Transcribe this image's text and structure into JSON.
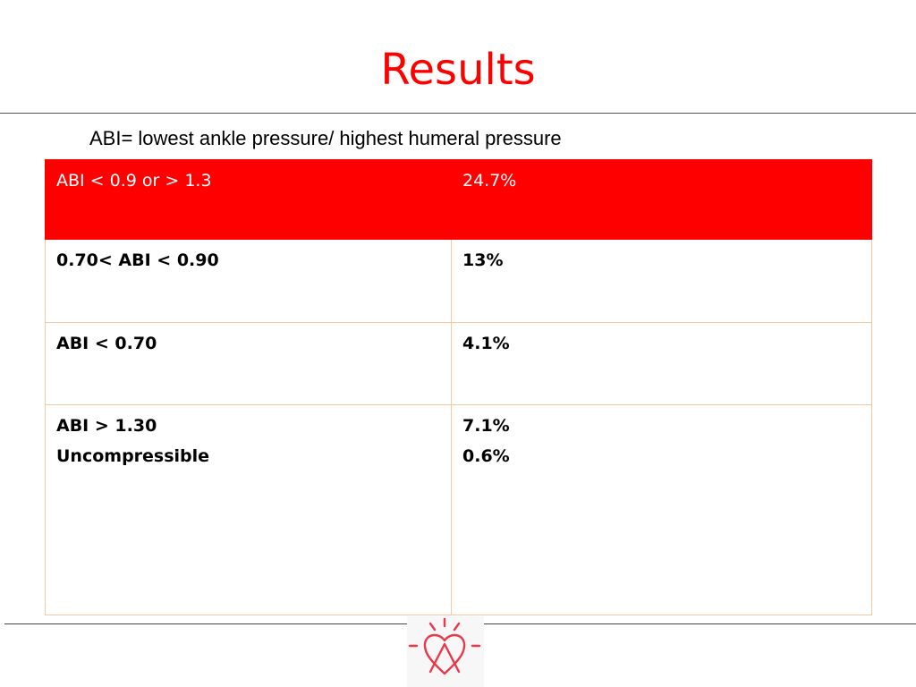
{
  "slide": {
    "title": "Results",
    "formula": "ABI= lowest ankle pressure/ highest humeral pressure"
  },
  "table": {
    "header": {
      "label": "ABI < 0.9 or > 1.3",
      "value": "24.7%"
    },
    "rows": [
      {
        "label": "0.70< ABI < 0.90",
        "value": "13%"
      },
      {
        "label": "ABI < 0.70",
        "value": "4.1%"
      },
      {
        "label_line1": "ABI > 1.30",
        "label_line2": "Uncompressible",
        "value_line1": "7.1%",
        "value_line2": "0.6%"
      }
    ]
  },
  "colors": {
    "accent": "#ff0000",
    "header_text": "#ffffff",
    "cell_border": "#f5c7a0"
  },
  "icons": {
    "logo": "heart-sun-logo-icon"
  }
}
